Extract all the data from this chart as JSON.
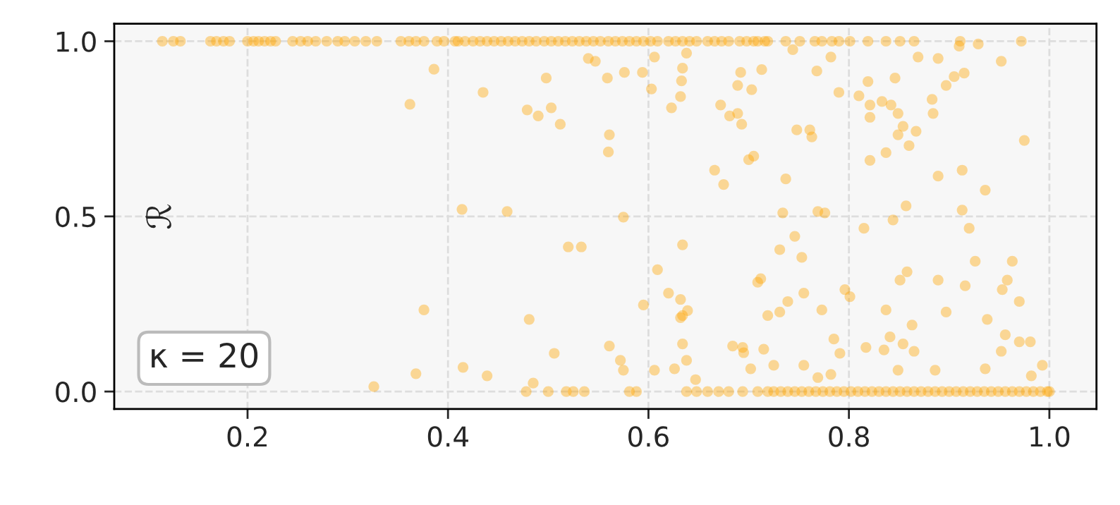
{
  "chart_data": {
    "type": "scatter",
    "ylabel": "ℛ",
    "annotations": [
      "κ = 20"
    ],
    "xlim": [
      0.067,
      1.047
    ],
    "ylim": [
      -0.05,
      1.05
    ],
    "xticks": [
      {
        "value": 0.2,
        "label": "0.2"
      },
      {
        "value": 0.4,
        "label": "0.4"
      },
      {
        "value": 0.6,
        "label": "0.6"
      },
      {
        "value": 0.8,
        "label": "0.8"
      },
      {
        "value": 1.0,
        "label": "1.0"
      }
    ],
    "yticks": [
      {
        "value": 0.0,
        "label": "0.0"
      },
      {
        "value": 0.5,
        "label": "0.5"
      },
      {
        "value": 1.0,
        "label": "1.0"
      }
    ],
    "grid": true,
    "legend": false,
    "marker": "circle",
    "series": [
      {
        "color": "#ffa500",
        "x": [
          0.115,
          0.126,
          0.133,
          0.163,
          0.169,
          0.176,
          0.182,
          0.2,
          0.206,
          0.211,
          0.217,
          0.223,
          0.228,
          0.245,
          0.253,
          0.26,
          0.268,
          0.279,
          0.29,
          0.297,
          0.307,
          0.318,
          0.329,
          0.353,
          0.361,
          0.368,
          0.376,
          0.389,
          0.396,
          0.407,
          0.41,
          0.417,
          0.425,
          0.432,
          0.439,
          0.446,
          0.453,
          0.46,
          0.467,
          0.474,
          0.481,
          0.488,
          0.496,
          0.503,
          0.51,
          0.517,
          0.524,
          0.531,
          0.538,
          0.545,
          0.552,
          0.56,
          0.567,
          0.574,
          0.581,
          0.588,
          0.595,
          0.602,
          0.609,
          0.62,
          0.627,
          0.634,
          0.641,
          0.648,
          0.659,
          0.666,
          0.673,
          0.68,
          0.691,
          0.698,
          0.705,
          0.709,
          0.716,
          0.719,
          0.737,
          0.751,
          0.766,
          0.773,
          0.783,
          0.79,
          0.801,
          0.819,
          0.837,
          0.851,
          0.865,
          0.911,
          0.972,
          0.478,
          0.5,
          0.518,
          0.525,
          0.536,
          0.581,
          0.588,
          0.638,
          0.648,
          0.659,
          0.67,
          0.68,
          0.694,
          0.709,
          0.719,
          0.725,
          0.732,
          0.739,
          0.746,
          0.753,
          0.76,
          0.767,
          0.774,
          0.781,
          0.788,
          0.795,
          0.802,
          0.809,
          0.816,
          0.823,
          0.83,
          0.837,
          0.844,
          0.851,
          0.858,
          0.865,
          0.872,
          0.879,
          0.886,
          0.893,
          0.9,
          0.907,
          0.914,
          0.921,
          0.928,
          0.935,
          0.942,
          0.949,
          0.956,
          0.963,
          0.97,
          0.977,
          0.984,
          0.991,
          0.998,
          1.0,
          0.362,
          0.386,
          0.435,
          0.479,
          0.49,
          0.498,
          0.503,
          0.512,
          0.54,
          0.547,
          0.559,
          0.561,
          0.56,
          0.576,
          0.594,
          0.603,
          0.606,
          0.623,
          0.632,
          0.633,
          0.634,
          0.638,
          0.672,
          0.681,
          0.689,
          0.692,
          0.689,
          0.693,
          0.703,
          0.713,
          0.7,
          0.705,
          0.666,
          0.675,
          0.744,
          0.748,
          0.761,
          0.763,
          0.737,
          0.768,
          0.782,
          0.79,
          0.769,
          0.776,
          0.734,
          0.81,
          0.819,
          0.821,
          0.821,
          0.833,
          0.837,
          0.821,
          0.846,
          0.842,
          0.849,
          0.854,
          0.86,
          0.849,
          0.867,
          0.869,
          0.883,
          0.884,
          0.897,
          0.905,
          0.915,
          0.889,
          0.91,
          0.929,
          0.952,
          0.975,
          0.889,
          0.913,
          0.936,
          0.913,
          0.92,
          0.815,
          0.844,
          0.857,
          0.414,
          0.459,
          0.575,
          0.52,
          0.533,
          0.634,
          0.609,
          0.62,
          0.632,
          0.639,
          0.634,
          0.632,
          0.595,
          0.709,
          0.712,
          0.719,
          0.731,
          0.739,
          0.746,
          0.731,
          0.753,
          0.755,
          0.773,
          0.796,
          0.801,
          0.851,
          0.858,
          0.889,
          0.897,
          0.916,
          0.926,
          0.938,
          0.953,
          0.958,
          0.963,
          0.97,
          0.956,
          0.952,
          0.97,
          0.981,
          0.982,
          0.993,
          0.837,
          0.841,
          0.854,
          0.865,
          0.863,
          0.835,
          0.849,
          0.785,
          0.791,
          0.817,
          0.886,
          0.936,
          0.782,
          0.769,
          0.755,
          0.702,
          0.694,
          0.684,
          0.695,
          0.715,
          0.725,
          0.626,
          0.606,
          0.638,
          0.634,
          0.647,
          0.561,
          0.572,
          0.575,
          0.506,
          0.481,
          0.485,
          0.376,
          0.368,
          0.415,
          0.439,
          0.326
        ],
        "values": [
          1,
          1,
          1,
          1,
          1,
          1,
          1,
          1,
          1,
          1,
          1,
          1,
          1,
          1,
          1,
          1,
          1,
          1,
          1,
          1,
          1,
          1,
          1,
          1,
          1,
          1,
          1,
          1,
          1,
          1,
          1,
          1,
          1,
          1,
          1,
          1,
          1,
          1,
          1,
          1,
          1,
          1,
          1,
          1,
          1,
          1,
          1,
          1,
          1,
          1,
          1,
          1,
          1,
          1,
          1,
          1,
          1,
          1,
          1,
          1,
          1,
          1,
          1,
          1,
          1,
          1,
          1,
          1,
          1,
          1,
          1,
          1,
          1,
          1,
          1,
          1,
          1,
          1,
          1,
          1,
          1,
          1,
          1,
          1,
          1,
          1,
          1,
          0,
          0,
          0,
          0,
          0,
          0,
          0,
          0,
          0,
          0,
          0,
          0,
          0,
          0,
          0,
          0,
          0,
          0,
          0,
          0,
          0,
          0,
          0,
          0,
          0,
          0,
          0,
          0,
          0,
          0,
          0,
          0,
          0,
          0,
          0,
          0,
          0,
          0,
          0,
          0,
          0,
          0,
          0,
          0,
          0,
          0,
          0,
          0,
          0,
          0,
          0,
          0,
          0,
          0,
          0,
          0,
          0.82,
          0.92,
          0.854,
          0.804,
          0.787,
          0.895,
          0.81,
          0.763,
          0.951,
          0.943,
          0.895,
          0.733,
          0.684,
          0.911,
          0.911,
          0.864,
          0.955,
          0.81,
          0.842,
          0.887,
          0.923,
          0.966,
          0.818,
          0.787,
          0.794,
          0.911,
          0.874,
          0.763,
          0.862,
          0.919,
          0.662,
          0.672,
          0.632,
          0.591,
          0.976,
          0.747,
          0.747,
          0.727,
          0.607,
          0.915,
          0.955,
          0.854,
          0.514,
          0.51,
          0.51,
          0.844,
          0.885,
          0.818,
          0.783,
          0.828,
          0.682,
          0.66,
          0.895,
          0.818,
          0.794,
          0.757,
          0.702,
          0.733,
          0.743,
          0.955,
          0.834,
          0.794,
          0.874,
          0.899,
          0.909,
          0.951,
          0.986,
          0.992,
          0.943,
          0.717,
          0.615,
          0.632,
          0.575,
          0.518,
          0.466,
          0.466,
          0.49,
          0.53,
          0.52,
          0.514,
          0.498,
          0.413,
          0.413,
          0.419,
          0.348,
          0.281,
          0.263,
          0.231,
          0.217,
          0.211,
          0.247,
          0.312,
          0.322,
          0.217,
          0.227,
          0.257,
          0.443,
          0.405,
          0.383,
          0.281,
          0.233,
          0.291,
          0.271,
          0.318,
          0.342,
          0.318,
          0.227,
          0.302,
          0.372,
          0.206,
          0.291,
          0.318,
          0.372,
          0.257,
          0.162,
          0.115,
          0.142,
          0.142,
          0.045,
          0.075,
          0.233,
          0.156,
          0.136,
          0.115,
          0.19,
          0.119,
          0.061,
          0.15,
          0.109,
          0.126,
          0.061,
          0.065,
          0.049,
          0.04,
          0.075,
          0.065,
          0.126,
          0.13,
          0.111,
          0.121,
          0.075,
          0.065,
          0.061,
          0.089,
          0.136,
          0.034,
          0.13,
          0.089,
          0.061,
          0.109,
          0.206,
          0.024,
          0.233,
          0.051,
          0.069,
          0.045,
          0.014
        ]
      }
    ]
  }
}
